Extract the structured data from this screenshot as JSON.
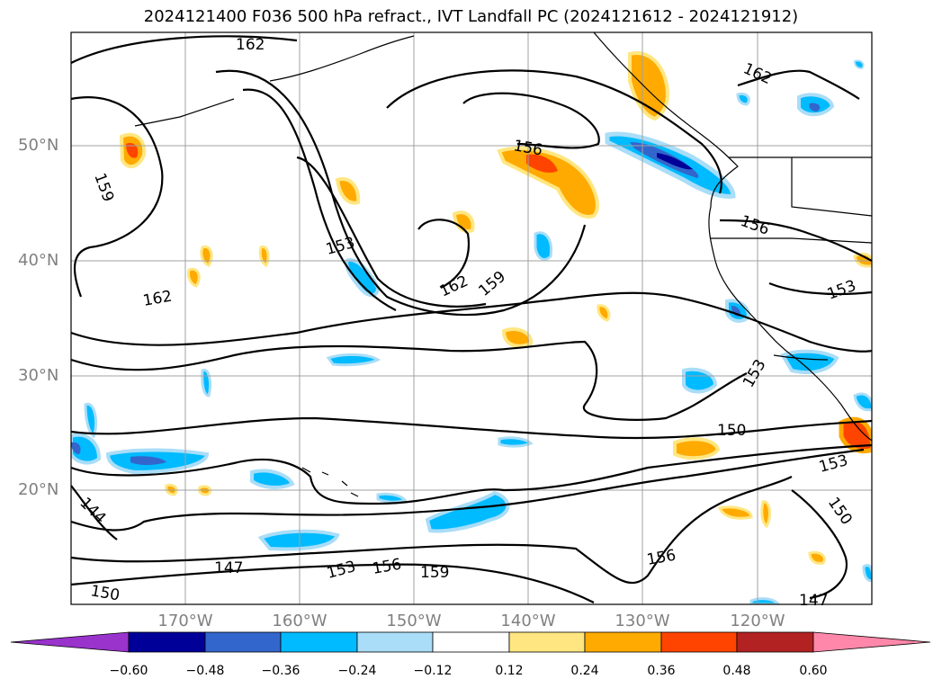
{
  "title": "2024121400 F036 500 hPa refract., IVT Landfall PC (2024121612 - 2024121912)",
  "lat_labels": [
    "50°N",
    "40°N",
    "30°N",
    "20°N"
  ],
  "lon_labels": [
    "170°W",
    "160°W",
    "150°W",
    "140°W",
    "130°W",
    "120°W"
  ],
  "contour_labels": [
    "162",
    "159",
    "153",
    "162",
    "162",
    "159",
    "156",
    "162",
    "156",
    "153",
    "153",
    "150",
    "153",
    "150",
    "147",
    "153",
    "156",
    "159",
    "156",
    "150",
    "144",
    "147"
  ],
  "colorbar": {
    "ticks": [
      "−0.60",
      "−0.48",
      "−0.36",
      "−0.24",
      "−0.12",
      "0.12",
      "0.24",
      "0.36",
      "0.48",
      "0.60"
    ],
    "colors": [
      "#9933cc",
      "#000099",
      "#3366cc",
      "#00bbff",
      "#aaddf7",
      "#ffffff",
      "#ffe680",
      "#ffaa00",
      "#ff4400",
      "#b22222",
      "#ff88aa"
    ]
  }
}
